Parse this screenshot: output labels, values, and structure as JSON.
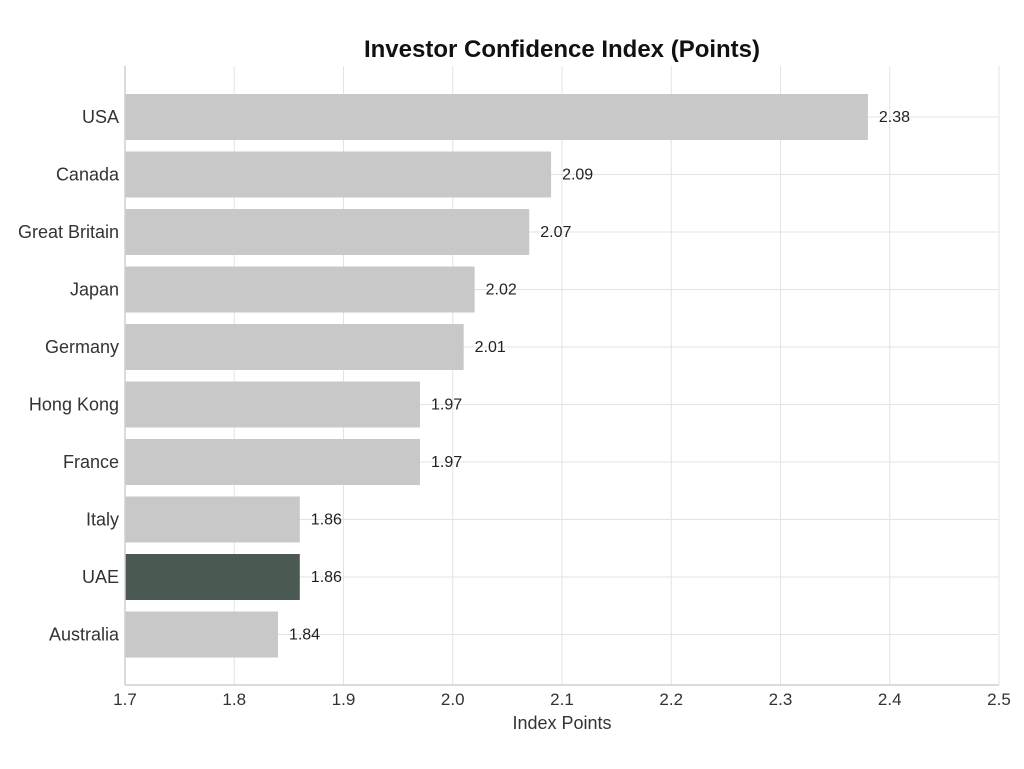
{
  "chart_data": {
    "type": "bar",
    "orientation": "horizontal",
    "title": "Investor Confidence Index (Points)",
    "xlabel": "Index Points",
    "ylabel": "",
    "categories": [
      "USA",
      "Canada",
      "Great Britain",
      "Japan",
      "Germany",
      "Hong Kong",
      "France",
      "Italy",
      "UAE",
      "Australia"
    ],
    "values": [
      2.38,
      2.09,
      2.07,
      2.02,
      2.01,
      1.97,
      1.97,
      1.86,
      1.86,
      1.84
    ],
    "value_labels": [
      "2.38",
      "2.09",
      "2.07",
      "2.02",
      "2.01",
      "1.97",
      "1.97",
      "1.86",
      "1.86",
      "1.84"
    ],
    "xlim": [
      1.7,
      2.5
    ],
    "xticks": [
      "1.7",
      "1.8",
      "1.9",
      "2.0",
      "2.1",
      "2.2",
      "2.3",
      "2.4",
      "2.5"
    ],
    "grid": true,
    "legend": "none",
    "bar_color": "#c8c8c8",
    "highlight_color": "#4a5a52",
    "highlight_category": "UAE"
  }
}
